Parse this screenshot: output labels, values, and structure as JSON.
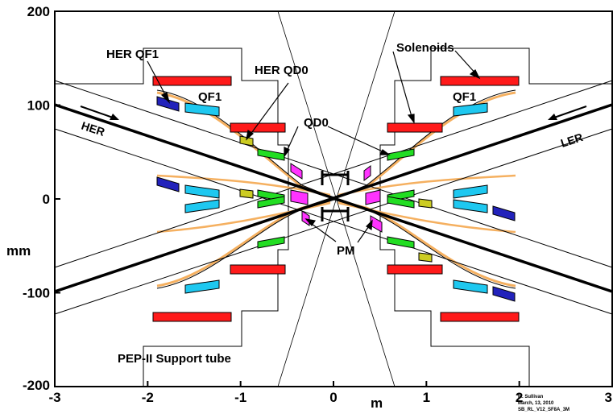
{
  "x_axis": {
    "label": "m",
    "ticks": [
      {
        "v": -3,
        "t": "-3"
      },
      {
        "v": -2,
        "t": "-2"
      },
      {
        "v": -1,
        "t": "-1"
      },
      {
        "v": 0,
        "t": "0"
      },
      {
        "v": 1,
        "t": "1"
      },
      {
        "v": 2,
        "t": "2"
      },
      {
        "v": 3,
        "t": "3"
      }
    ]
  },
  "y_axis": {
    "label": "mm",
    "ticks": [
      {
        "v": 200,
        "t": "200"
      },
      {
        "v": 100,
        "t": "100"
      },
      {
        "v": 0,
        "t": "0"
      },
      {
        "v": -100,
        "t": "-100"
      },
      {
        "v": -200,
        "t": "-200"
      }
    ]
  },
  "labels": {
    "her_qf1": "HER QF1",
    "her_qd0": "HER QD0",
    "solenoids": "Solenoids",
    "qf1_left": "QF1",
    "qf1_right": "QF1",
    "qd0": "QD0",
    "her": "HER",
    "ler": "LER",
    "pm": "PM",
    "support_tube": "PEP-II Support tube"
  },
  "credit": {
    "line1": "M. Sullivan",
    "line2": "March, 13, 2010",
    "line3": "SB_RL_V12_SF8A_3M"
  },
  "colors": {
    "solenoid": "#ff1a1a",
    "qf1": "#1ec8f0",
    "qd0": "#22dd22",
    "pm": "#ff33ff",
    "her_qf1": "#2222bb",
    "her_qd0": "#cccc22",
    "beam_pipe": "#f5b060"
  }
}
